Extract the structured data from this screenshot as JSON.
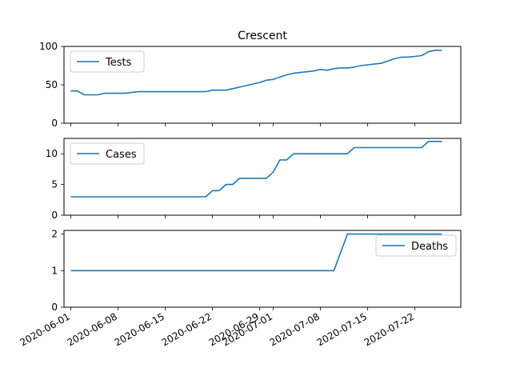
{
  "chart_data": {
    "type": "line",
    "title": "Crescent",
    "line_color": "#1f77b4",
    "x_ticks": [
      "2020-06-01",
      "2020-06-08",
      "2020-06-15",
      "2020-06-22",
      "2020-06-29",
      "2020-07-01",
      "2020-07-08",
      "2020-07-15",
      "2020-07-22"
    ],
    "panels": [
      {
        "name": "Tests",
        "ylim": [
          0,
          100
        ],
        "yticks": [
          0,
          50,
          100
        ],
        "legend": "top-left",
        "x": [
          "2020-06-01",
          "2020-06-02",
          "2020-06-03",
          "2020-06-05",
          "2020-06-06",
          "2020-06-09",
          "2020-06-11",
          "2020-06-14",
          "2020-06-17",
          "2020-06-21",
          "2020-06-22",
          "2020-06-24",
          "2020-06-25",
          "2020-06-26",
          "2020-06-27",
          "2020-06-28",
          "2020-06-29",
          "2020-06-30",
          "2020-07-01",
          "2020-07-02",
          "2020-07-03",
          "2020-07-04",
          "2020-07-05",
          "2020-07-06",
          "2020-07-07",
          "2020-07-08",
          "2020-07-09",
          "2020-07-10",
          "2020-07-11",
          "2020-07-12",
          "2020-07-13",
          "2020-07-14",
          "2020-07-15",
          "2020-07-16",
          "2020-07-17",
          "2020-07-18",
          "2020-07-19",
          "2020-07-20",
          "2020-07-21",
          "2020-07-22",
          "2020-07-23",
          "2020-07-24",
          "2020-07-25",
          "2020-07-26"
        ],
        "y": [
          42,
          42,
          37,
          37,
          39,
          39,
          41,
          41,
          41,
          41,
          43,
          43,
          45,
          47,
          49,
          51,
          53,
          56,
          57,
          60,
          63,
          65,
          66,
          67,
          68,
          70,
          69,
          71,
          72,
          72,
          73,
          75,
          76,
          77,
          78,
          81,
          84,
          86,
          86,
          87,
          88,
          93,
          95,
          95
        ]
      },
      {
        "name": "Cases",
        "ylim": [
          0,
          12.5
        ],
        "yticks": [
          0,
          5,
          10
        ],
        "legend": "top-left",
        "x": [
          "2020-06-01",
          "2020-06-21",
          "2020-06-22",
          "2020-06-23",
          "2020-06-24",
          "2020-06-25",
          "2020-06-26",
          "2020-06-27",
          "2020-06-30",
          "2020-07-01",
          "2020-07-02",
          "2020-07-03",
          "2020-07-04",
          "2020-07-12",
          "2020-07-13",
          "2020-07-21",
          "2020-07-22",
          "2020-07-23",
          "2020-07-24",
          "2020-07-25",
          "2020-07-26"
        ],
        "y": [
          3,
          3,
          4,
          4,
          5,
          5,
          6,
          6,
          6,
          7,
          9,
          9,
          10,
          10,
          11,
          11,
          11,
          11,
          12,
          12,
          12
        ]
      },
      {
        "name": "Deaths",
        "ylim": [
          0,
          2.1
        ],
        "yticks": [
          0,
          1,
          2
        ],
        "legend": "top-right",
        "x": [
          "2020-06-01",
          "2020-07-10",
          "2020-07-12",
          "2020-07-26"
        ],
        "y": [
          1,
          1,
          2,
          2
        ]
      }
    ]
  }
}
